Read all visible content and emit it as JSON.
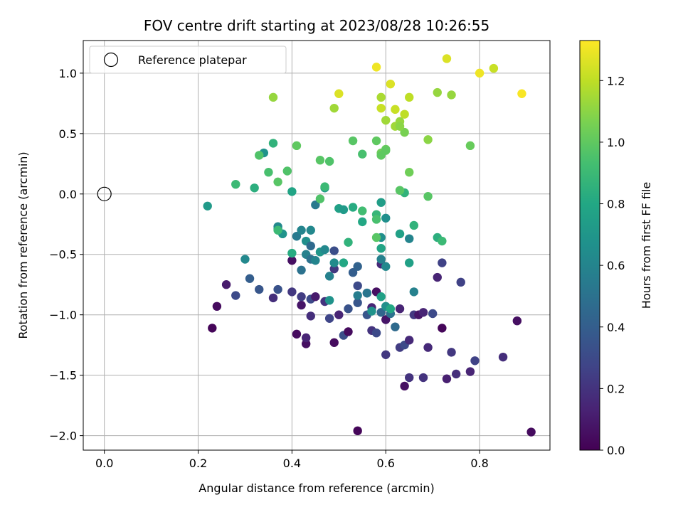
{
  "chart_data": {
    "type": "scatter",
    "title": "FOV centre drift starting at 2023/08/28 10:26:55",
    "xlabel": "Angular distance from reference (arcmin)",
    "ylabel": "Rotation from reference (arcmin)",
    "xlim": [
      -0.045,
      0.95
    ],
    "ylim": [
      -2.12,
      1.27
    ],
    "xticks": [
      0.0,
      0.2,
      0.4,
      0.6,
      0.8
    ],
    "xtick_labels": [
      "0.0",
      "0.2",
      "0.4",
      "0.6",
      "0.8"
    ],
    "yticks": [
      -2.0,
      -1.5,
      -1.0,
      -0.5,
      0.0,
      0.5,
      1.0
    ],
    "ytick_labels": [
      "−2.0",
      "−1.5",
      "−1.0",
      "−0.5",
      "0.0",
      "0.5",
      "1.0"
    ],
    "grid": true,
    "legend": {
      "placement": "top-left",
      "entries": [
        "Reference platepar"
      ]
    },
    "reference_point": {
      "x": 0.0,
      "y": 0.0
    },
    "colorbar": {
      "label": "Hours from first FF file",
      "colormap": "viridis",
      "range": [
        0.0,
        1.33
      ],
      "ticks": [
        0.0,
        0.2,
        0.4,
        0.6,
        0.8,
        1.0,
        1.2
      ],
      "tick_labels": [
        "0.0",
        "0.2",
        "0.4",
        "0.6",
        "0.8",
        "1.0",
        "1.2"
      ]
    },
    "points": [
      [
        0.23,
        -1.11,
        0.02
      ],
      [
        0.24,
        -0.93,
        0.04
      ],
      [
        0.26,
        -0.75,
        0.1
      ],
      [
        0.28,
        -0.84,
        0.3
      ],
      [
        0.31,
        -0.7,
        0.4
      ],
      [
        0.33,
        -0.79,
        0.36
      ],
      [
        0.36,
        -0.86,
        0.18
      ],
      [
        0.37,
        -0.79,
        0.34
      ],
      [
        0.4,
        -0.55,
        0.06
      ],
      [
        0.4,
        -0.81,
        0.22
      ],
      [
        0.41,
        -1.16,
        0.04
      ],
      [
        0.42,
        -0.92,
        0.08
      ],
      [
        0.42,
        -0.85,
        0.24
      ],
      [
        0.43,
        -1.24,
        0.06
      ],
      [
        0.43,
        -1.19,
        0.14
      ],
      [
        0.44,
        -0.87,
        0.3
      ],
      [
        0.44,
        -1.01,
        0.18
      ],
      [
        0.45,
        -0.85,
        0.1
      ],
      [
        0.47,
        -0.89,
        0.2
      ],
      [
        0.48,
        -1.03,
        0.28
      ],
      [
        0.49,
        -1.23,
        0.04
      ],
      [
        0.49,
        -0.62,
        0.22
      ],
      [
        0.49,
        -0.47,
        0.32
      ],
      [
        0.5,
        -1.0,
        0.14
      ],
      [
        0.51,
        -1.17,
        0.32
      ],
      [
        0.52,
        -1.14,
        0.04
      ],
      [
        0.52,
        -0.95,
        0.34
      ],
      [
        0.53,
        -0.65,
        0.4
      ],
      [
        0.54,
        -0.9,
        0.36
      ],
      [
        0.54,
        -0.6,
        0.42
      ],
      [
        0.54,
        -0.76,
        0.3
      ],
      [
        0.56,
        -0.82,
        0.38
      ],
      [
        0.56,
        -1.0,
        0.36
      ],
      [
        0.57,
        -0.94,
        0.14
      ],
      [
        0.57,
        -1.13,
        0.2
      ],
      [
        0.58,
        -0.81,
        0.06
      ],
      [
        0.58,
        -1.15,
        0.3
      ],
      [
        0.59,
        -0.58,
        0.16
      ],
      [
        0.59,
        -0.98,
        0.44
      ],
      [
        0.6,
        -1.04,
        0.08
      ],
      [
        0.6,
        -1.33,
        0.22
      ],
      [
        0.61,
        -0.99,
        0.5
      ],
      [
        0.62,
        -1.1,
        0.46
      ],
      [
        0.63,
        -0.95,
        0.14
      ],
      [
        0.63,
        -1.27,
        0.24
      ],
      [
        0.64,
        -1.25,
        0.3
      ],
      [
        0.64,
        -1.59,
        0.06
      ],
      [
        0.65,
        -1.21,
        0.16
      ],
      [
        0.65,
        -1.52,
        0.2
      ],
      [
        0.66,
        -1.0,
        0.22
      ],
      [
        0.67,
        -1.0,
        0.08
      ],
      [
        0.68,
        -0.98,
        0.14
      ],
      [
        0.68,
        -1.52,
        0.2
      ],
      [
        0.69,
        -1.27,
        0.16
      ],
      [
        0.7,
        -0.99,
        0.3
      ],
      [
        0.71,
        -0.69,
        0.14
      ],
      [
        0.72,
        -0.57,
        0.26
      ],
      [
        0.72,
        -1.11,
        0.02
      ],
      [
        0.73,
        -1.53,
        0.12
      ],
      [
        0.74,
        -1.31,
        0.22
      ],
      [
        0.75,
        -1.49,
        0.18
      ],
      [
        0.76,
        -0.73,
        0.26
      ],
      [
        0.78,
        -1.47,
        0.14
      ],
      [
        0.79,
        -1.38,
        0.26
      ],
      [
        0.85,
        -1.35,
        0.18
      ],
      [
        0.88,
        -1.05,
        0.06
      ],
      [
        0.91,
        -1.97,
        0.04
      ],
      [
        0.54,
        -1.96,
        0.02
      ],
      [
        0.22,
        -0.1,
        0.72
      ],
      [
        0.3,
        -0.54,
        0.62
      ],
      [
        0.32,
        0.05,
        0.84
      ],
      [
        0.34,
        0.34,
        0.68
      ],
      [
        0.37,
        -0.29,
        0.74
      ],
      [
        0.37,
        -0.27,
        0.62
      ],
      [
        0.38,
        -0.33,
        0.68
      ],
      [
        0.4,
        0.02,
        0.78
      ],
      [
        0.4,
        -0.49,
        0.82
      ],
      [
        0.41,
        -0.35,
        0.54
      ],
      [
        0.42,
        -0.3,
        0.6
      ],
      [
        0.42,
        -0.63,
        0.5
      ],
      [
        0.43,
        -0.39,
        0.66
      ],
      [
        0.43,
        -0.5,
        0.58
      ],
      [
        0.44,
        -0.43,
        0.46
      ],
      [
        0.44,
        -0.54,
        0.5
      ],
      [
        0.44,
        -0.3,
        0.62
      ],
      [
        0.45,
        -0.09,
        0.54
      ],
      [
        0.45,
        -0.55,
        0.6
      ],
      [
        0.46,
        -0.48,
        0.7
      ],
      [
        0.47,
        -0.46,
        0.62
      ],
      [
        0.47,
        0.05,
        0.72
      ],
      [
        0.48,
        -0.68,
        0.58
      ],
      [
        0.48,
        -0.88,
        0.68
      ],
      [
        0.49,
        -0.57,
        0.64
      ],
      [
        0.5,
        -0.12,
        0.76
      ],
      [
        0.51,
        -0.13,
        0.72
      ],
      [
        0.51,
        -0.57,
        0.8
      ],
      [
        0.52,
        -0.4,
        0.86
      ],
      [
        0.53,
        -0.11,
        0.82
      ],
      [
        0.54,
        -0.84,
        0.56
      ],
      [
        0.55,
        -0.23,
        0.8
      ],
      [
        0.56,
        -0.82,
        0.52
      ],
      [
        0.57,
        -0.97,
        0.68
      ],
      [
        0.58,
        -0.17,
        0.88
      ],
      [
        0.59,
        -0.36,
        0.66
      ],
      [
        0.59,
        -0.54,
        0.58
      ],
      [
        0.59,
        -0.45,
        0.78
      ],
      [
        0.59,
        -0.07,
        0.74
      ],
      [
        0.59,
        -0.85,
        0.76
      ],
      [
        0.6,
        -0.6,
        0.62
      ],
      [
        0.6,
        -0.2,
        0.66
      ],
      [
        0.6,
        -0.93,
        0.66
      ],
      [
        0.61,
        -0.95,
        0.8
      ],
      [
        0.63,
        -0.33,
        0.76
      ],
      [
        0.64,
        0.01,
        0.86
      ],
      [
        0.65,
        -0.37,
        0.6
      ],
      [
        0.65,
        -0.57,
        0.76
      ],
      [
        0.66,
        -0.81,
        0.58
      ],
      [
        0.66,
        -0.26,
        0.86
      ],
      [
        0.71,
        -0.36,
        0.84
      ],
      [
        0.72,
        -0.39,
        0.9
      ],
      [
        0.28,
        0.08,
        0.9
      ],
      [
        0.33,
        0.32,
        0.96
      ],
      [
        0.35,
        0.18,
        0.94
      ],
      [
        0.36,
        0.42,
        0.86
      ],
      [
        0.37,
        -0.3,
        0.9
      ],
      [
        0.37,
        0.1,
        0.98
      ],
      [
        0.39,
        0.19,
        0.96
      ],
      [
        0.41,
        0.4,
        1.0
      ],
      [
        0.46,
        0.28,
        0.98
      ],
      [
        0.46,
        -0.04,
        0.96
      ],
      [
        0.47,
        0.06,
        0.9
      ],
      [
        0.48,
        0.27,
        0.96
      ],
      [
        0.53,
        0.44,
        0.98
      ],
      [
        0.55,
        0.33,
        0.94
      ],
      [
        0.55,
        -0.14,
        0.92
      ],
      [
        0.58,
        0.44,
        1.0
      ],
      [
        0.58,
        -0.36,
        0.98
      ],
      [
        0.58,
        -0.21,
        0.94
      ],
      [
        0.59,
        0.34,
        1.04
      ],
      [
        0.59,
        0.32,
        1.0
      ],
      [
        0.6,
        0.37,
        1.02
      ],
      [
        0.6,
        0.36,
        1.0
      ],
      [
        0.63,
        0.03,
        0.98
      ],
      [
        0.64,
        0.51,
        1.06
      ],
      [
        0.65,
        0.18,
        1.04
      ],
      [
        0.69,
        -0.02,
        0.98
      ],
      [
        0.78,
        0.4,
        1.02
      ],
      [
        0.36,
        0.8,
        1.12
      ],
      [
        0.49,
        0.71,
        1.14
      ],
      [
        0.5,
        0.83,
        1.26
      ],
      [
        0.58,
        1.05,
        1.3
      ],
      [
        0.59,
        0.8,
        1.16
      ],
      [
        0.59,
        0.71,
        1.22
      ],
      [
        0.6,
        0.61,
        1.14
      ],
      [
        0.61,
        0.91,
        1.26
      ],
      [
        0.62,
        0.56,
        1.14
      ],
      [
        0.62,
        0.7,
        1.22
      ],
      [
        0.63,
        0.6,
        1.12
      ],
      [
        0.63,
        0.56,
        1.1
      ],
      [
        0.64,
        0.66,
        1.2
      ],
      [
        0.65,
        0.8,
        1.2
      ],
      [
        0.69,
        0.45,
        1.1
      ],
      [
        0.71,
        0.84,
        1.12
      ],
      [
        0.73,
        1.12,
        1.26
      ],
      [
        0.74,
        0.82,
        1.12
      ],
      [
        0.8,
        1.0,
        1.3
      ],
      [
        0.83,
        1.04,
        1.22
      ],
      [
        0.89,
        0.83,
        1.32
      ]
    ]
  }
}
